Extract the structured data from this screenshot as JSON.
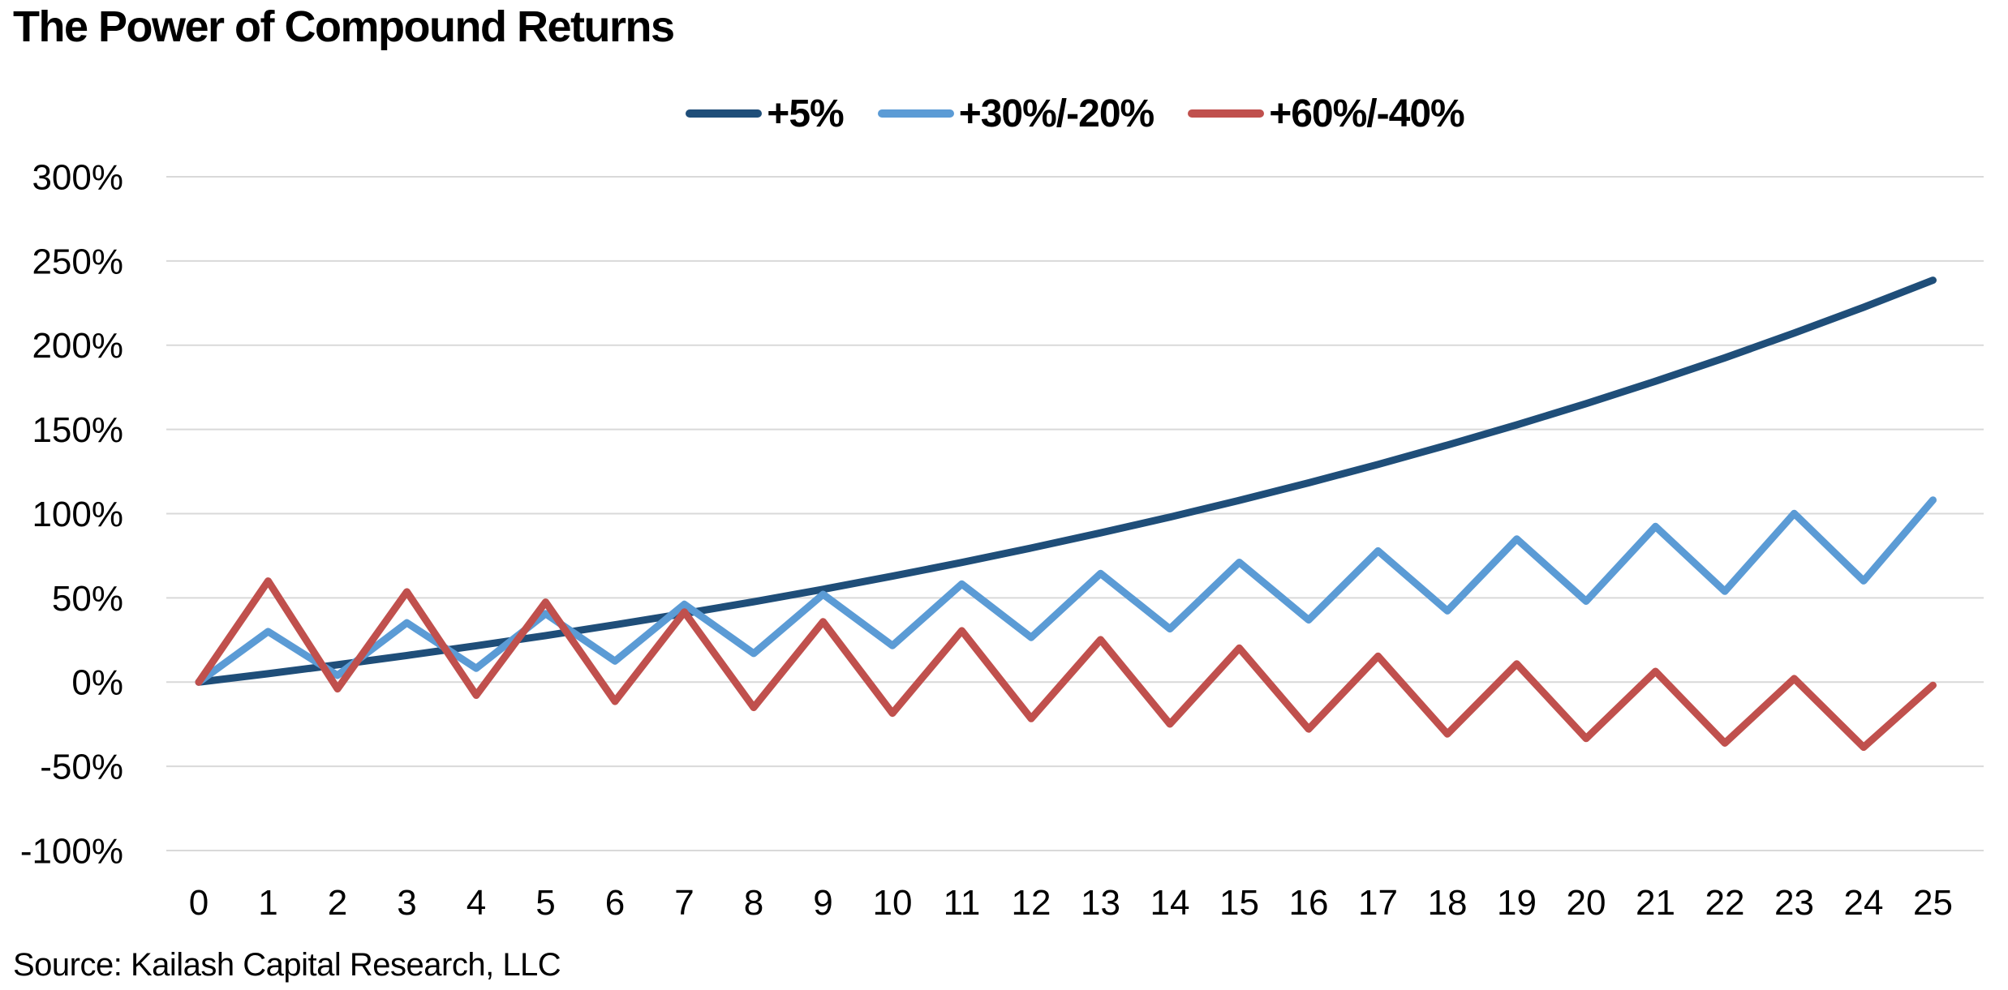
{
  "title": "The Power of Compound Returns",
  "source": "Source: Kailash Capital Research, LLC",
  "legend": [
    {
      "label": "+5%",
      "color": "#1F4E79"
    },
    {
      "label": "+30%/-20%",
      "color": "#5B9BD5"
    },
    {
      "label": "+60%/-40%",
      "color": "#C0504D"
    }
  ],
  "colors": {
    "gridline": "#D9D9D9",
    "axis_text": "#000000",
    "background": "#FFFFFF"
  },
  "chart_data": {
    "type": "line",
    "title": "The Power of Compound Returns",
    "xlabel": "",
    "ylabel": "",
    "x": [
      0,
      1,
      2,
      3,
      4,
      5,
      6,
      7,
      8,
      9,
      10,
      11,
      12,
      13,
      14,
      15,
      16,
      17,
      18,
      19,
      20,
      21,
      22,
      23,
      24,
      25
    ],
    "x_tick_labels": [
      "0",
      "1",
      "2",
      "3",
      "4",
      "5",
      "6",
      "7",
      "8",
      "9",
      "10",
      "11",
      "12",
      "13",
      "14",
      "15",
      "16",
      "17",
      "18",
      "19",
      "20",
      "21",
      "22",
      "23",
      "24",
      "25"
    ],
    "ylim": [
      -100,
      300
    ],
    "y_tick_values": [
      300,
      250,
      200,
      150,
      100,
      50,
      0,
      -50,
      -100
    ],
    "y_tick_labels": [
      "300%",
      "250%",
      "200%",
      "150%",
      "100%",
      "50%",
      "0%",
      "-50%",
      "-100%"
    ],
    "grid": true,
    "legend_position": "top-center",
    "series": [
      {
        "name": "+5%",
        "color": "#1F4E79",
        "values": [
          0,
          5,
          10.3,
          15.8,
          21.6,
          27.6,
          34,
          40.7,
          47.7,
          55.1,
          62.9,
          71,
          79.6,
          88.6,
          98,
          107.9,
          118.3,
          129.2,
          140.7,
          152.7,
          165.3,
          178.6,
          192.5,
          207.2,
          222.5,
          238.6
        ]
      },
      {
        "name": "+30%/-20%",
        "color": "#5B9BD5",
        "values": [
          0,
          30,
          4,
          35.2,
          8.2,
          40.6,
          12.5,
          46.2,
          17,
          52.1,
          21.7,
          58.2,
          26.5,
          64.5,
          31.6,
          71.1,
          36.9,
          77.9,
          42.3,
          85,
          48,
          92.4,
          53.9,
          100.1,
          60.1,
          108.1
        ]
      },
      {
        "name": "+60%/-40%",
        "color": "#C0504D",
        "values": [
          0,
          60,
          -4,
          53.6,
          -7.8,
          47.5,
          -11.5,
          41.6,
          -15.1,
          35.9,
          -18.5,
          30.5,
          -21.7,
          25.2,
          -24.9,
          20.2,
          -27.9,
          15.4,
          -30.8,
          10.8,
          -33.5,
          6.4,
          -36.2,
          2.1,
          -38.7,
          -1.9
        ]
      }
    ]
  }
}
